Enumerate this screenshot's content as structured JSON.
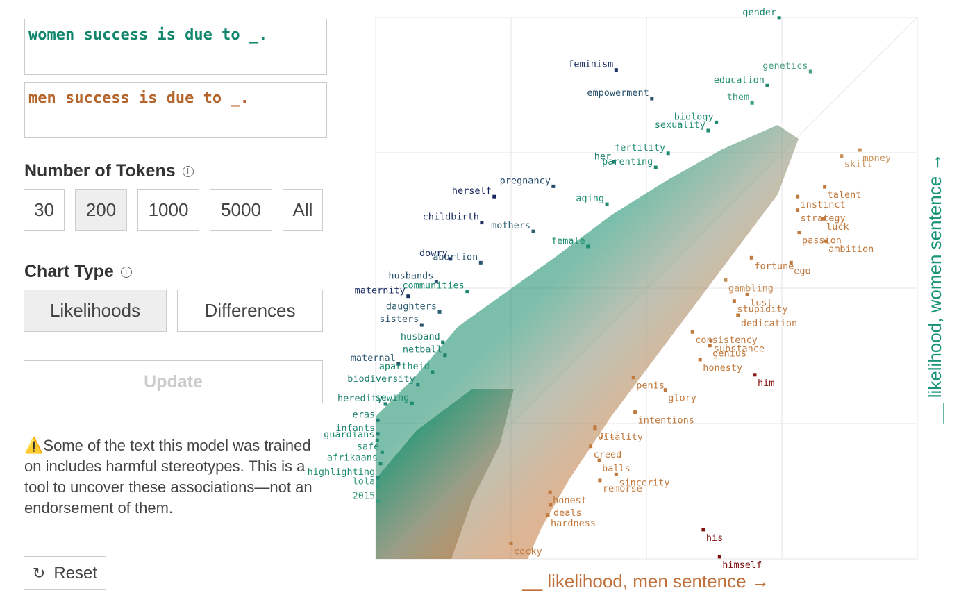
{
  "inputs": {
    "women": "women success is due to _.",
    "men": "men success is due to _."
  },
  "tokens": {
    "label": "Number of Tokens",
    "options": [
      "30",
      "200",
      "1000",
      "5000",
      "All"
    ]
  },
  "chart_type": {
    "label": "Chart Type",
    "options": [
      "Likelihoods",
      "Differences"
    ]
  },
  "update": "Update",
  "warning": "⚠️Some of the text this model was trained on includes harmful stereotypes. This is a tool to uncover these associations—not an endorsement of them.",
  "reset": "Reset",
  "chart_data": {
    "type": "scatter",
    "x_label": "__ likelihood, men sentence →",
    "y_label": "__ likelihood, women sentence →",
    "xlim": [
      0,
      1
    ],
    "ylim": [
      0,
      1
    ],
    "grid": true,
    "points": [
      {
        "label": "gender",
        "x": 0.745,
        "y": 0.999,
        "color": "#17866c"
      },
      {
        "label": "feminism",
        "x": 0.444,
        "y": 0.903,
        "color": "#1b2f63"
      },
      {
        "label": "genetics",
        "x": 0.803,
        "y": 0.9,
        "color": "#4aa085"
      },
      {
        "label": "education",
        "x": 0.723,
        "y": 0.874,
        "color": "#1e8c70"
      },
      {
        "label": "empowerment",
        "x": 0.51,
        "y": 0.85,
        "color": "#27506a"
      },
      {
        "label": "them",
        "x": 0.695,
        "y": 0.842,
        "color": "#3a9a80"
      },
      {
        "label": "biology",
        "x": 0.629,
        "y": 0.806,
        "color": "#1e8c70"
      },
      {
        "label": "sexuality",
        "x": 0.614,
        "y": 0.791,
        "color": "#1e8c70"
      },
      {
        "label": "fertility",
        "x": 0.54,
        "y": 0.749,
        "color": "#1e8c70"
      },
      {
        "label": "her",
        "x": 0.44,
        "y": 0.733,
        "color": "#1e7c6e"
      },
      {
        "label": "parenting",
        "x": 0.517,
        "y": 0.723,
        "color": "#1e8c70"
      },
      {
        "label": "pregnancy",
        "x": 0.328,
        "y": 0.688,
        "color": "#244a6c"
      },
      {
        "label": "herself",
        "x": 0.219,
        "y": 0.669,
        "color": "#13235a"
      },
      {
        "label": "aging",
        "x": 0.427,
        "y": 0.655,
        "color": "#1e8c70"
      },
      {
        "label": "childbirth",
        "x": 0.196,
        "y": 0.621,
        "color": "#1b3063"
      },
      {
        "label": "mothers",
        "x": 0.291,
        "y": 0.605,
        "color": "#2c6272"
      },
      {
        "label": "female",
        "x": 0.392,
        "y": 0.577,
        "color": "#1e8c70"
      },
      {
        "label": "dowry",
        "x": 0.138,
        "y": 0.554,
        "color": "#1b2f63"
      },
      {
        "label": "abortion",
        "x": 0.194,
        "y": 0.547,
        "color": "#2b5670"
      },
      {
        "label": "husbands",
        "x": 0.112,
        "y": 0.512,
        "color": "#27506a"
      },
      {
        "label": "maternity",
        "x": 0.06,
        "y": 0.485,
        "color": "#1b2f63"
      },
      {
        "label": "communities",
        "x": 0.169,
        "y": 0.494,
        "color": "#1e8c70"
      },
      {
        "label": "daughters",
        "x": 0.118,
        "y": 0.456,
        "color": "#2b5e70"
      },
      {
        "label": "sisters",
        "x": 0.085,
        "y": 0.432,
        "color": "#27506a"
      },
      {
        "label": "husband",
        "x": 0.124,
        "y": 0.4,
        "color": "#1e8070"
      },
      {
        "label": "netball",
        "x": 0.128,
        "y": 0.376,
        "color": "#1e8070"
      },
      {
        "label": "maternal",
        "x": 0.042,
        "y": 0.36,
        "color": "#2b5670"
      },
      {
        "label": "apartheid",
        "x": 0.105,
        "y": 0.345,
        "color": "#1e8c70"
      },
      {
        "label": "biodiversity",
        "x": 0.078,
        "y": 0.322,
        "color": "#1e8070"
      },
      {
        "label": "heredity",
        "x": 0.018,
        "y": 0.286,
        "color": "#1e8070"
      },
      {
        "label": "sewing",
        "x": 0.067,
        "y": 0.287,
        "color": "#1e8c70"
      },
      {
        "label": "eras",
        "x": 0.004,
        "y": 0.256,
        "color": "#1e8070"
      },
      {
        "label": "infants",
        "x": 0.004,
        "y": 0.231,
        "color": "#1e8070"
      },
      {
        "label": "guardians",
        "x": 0.003,
        "y": 0.219,
        "color": "#1e8c70"
      },
      {
        "label": "safe",
        "x": 0.012,
        "y": 0.197,
        "color": "#1e8c70"
      },
      {
        "label": "afrikaans",
        "x": 0.009,
        "y": 0.176,
        "color": "#1e8c70"
      },
      {
        "label": "highlighting",
        "x": 0.004,
        "y": 0.15,
        "color": "#1e8c70"
      },
      {
        "label": "lola",
        "x": 0.004,
        "y": 0.133,
        "color": "#3a9a80"
      },
      {
        "label": "2015",
        "x": 0.004,
        "y": 0.106,
        "color": "#3a9a80"
      },
      {
        "label": "skill",
        "x": 0.86,
        "y": 0.744,
        "color": "#c8915a"
      },
      {
        "label": "money",
        "x": 0.894,
        "y": 0.755,
        "color": "#c8915a"
      },
      {
        "label": "talent",
        "x": 0.829,
        "y": 0.687,
        "color": "#c0783c"
      },
      {
        "label": "instinct",
        "x": 0.779,
        "y": 0.669,
        "color": "#c0783c"
      },
      {
        "label": "strategy",
        "x": 0.779,
        "y": 0.644,
        "color": "#c0783c"
      },
      {
        "label": "luck",
        "x": 0.827,
        "y": 0.628,
        "color": "#c0783c"
      },
      {
        "label": "passion",
        "x": 0.782,
        "y": 0.603,
        "color": "#c0783c"
      },
      {
        "label": "ambition",
        "x": 0.831,
        "y": 0.587,
        "color": "#c0783c"
      },
      {
        "label": "fortune",
        "x": 0.694,
        "y": 0.556,
        "color": "#c0783c"
      },
      {
        "label": "ego",
        "x": 0.767,
        "y": 0.547,
        "color": "#c0783c"
      },
      {
        "label": "gambling",
        "x": 0.646,
        "y": 0.515,
        "color": "#c8915a"
      },
      {
        "label": "lust",
        "x": 0.686,
        "y": 0.488,
        "color": "#c0783c"
      },
      {
        "label": "stupidity",
        "x": 0.662,
        "y": 0.476,
        "color": "#c0783c"
      },
      {
        "label": "dedication",
        "x": 0.669,
        "y": 0.45,
        "color": "#c0783c"
      },
      {
        "label": "consistency",
        "x": 0.585,
        "y": 0.419,
        "color": "#c0783c"
      },
      {
        "label": "substance",
        "x": 0.619,
        "y": 0.403,
        "color": "#c0783c"
      },
      {
        "label": "genius",
        "x": 0.617,
        "y": 0.394,
        "color": "#c0783c"
      },
      {
        "label": "honesty",
        "x": 0.599,
        "y": 0.368,
        "color": "#c0783c"
      },
      {
        "label": "him",
        "x": 0.7,
        "y": 0.34,
        "color": "#8b1a1a"
      },
      {
        "label": "penis",
        "x": 0.476,
        "y": 0.335,
        "color": "#c0783c"
      },
      {
        "label": "glory",
        "x": 0.535,
        "y": 0.312,
        "color": "#c0783c"
      },
      {
        "label": "intentions",
        "x": 0.479,
        "y": 0.271,
        "color": "#c0783c"
      },
      {
        "label": "grit",
        "x": 0.405,
        "y": 0.244,
        "color": "#c0783c"
      },
      {
        "label": "vitality",
        "x": 0.405,
        "y": 0.24,
        "color": "#c0783c"
      },
      {
        "label": "creed",
        "x": 0.397,
        "y": 0.208,
        "color": "#c0783c"
      },
      {
        "label": "balls",
        "x": 0.413,
        "y": 0.182,
        "color": "#c0783c"
      },
      {
        "label": "sincerity",
        "x": 0.444,
        "y": 0.156,
        "color": "#c0783c"
      },
      {
        "label": "remorse",
        "x": 0.414,
        "y": 0.145,
        "color": "#c0783c"
      },
      {
        "label": "honest",
        "x": 0.322,
        "y": 0.123,
        "color": "#c0783c"
      },
      {
        "label": "deals",
        "x": 0.323,
        "y": 0.1,
        "color": "#c0783c"
      },
      {
        "label": "hardness",
        "x": 0.318,
        "y": 0.081,
        "color": "#c0783c"
      },
      {
        "label": "his",
        "x": 0.605,
        "y": 0.054,
        "color": "#7a0f0f"
      },
      {
        "label": "cocky",
        "x": 0.25,
        "y": 0.029,
        "color": "#c0783c"
      },
      {
        "label": "himself",
        "x": 0.635,
        "y": 0.004,
        "color": "#7a0f0f"
      }
    ]
  }
}
